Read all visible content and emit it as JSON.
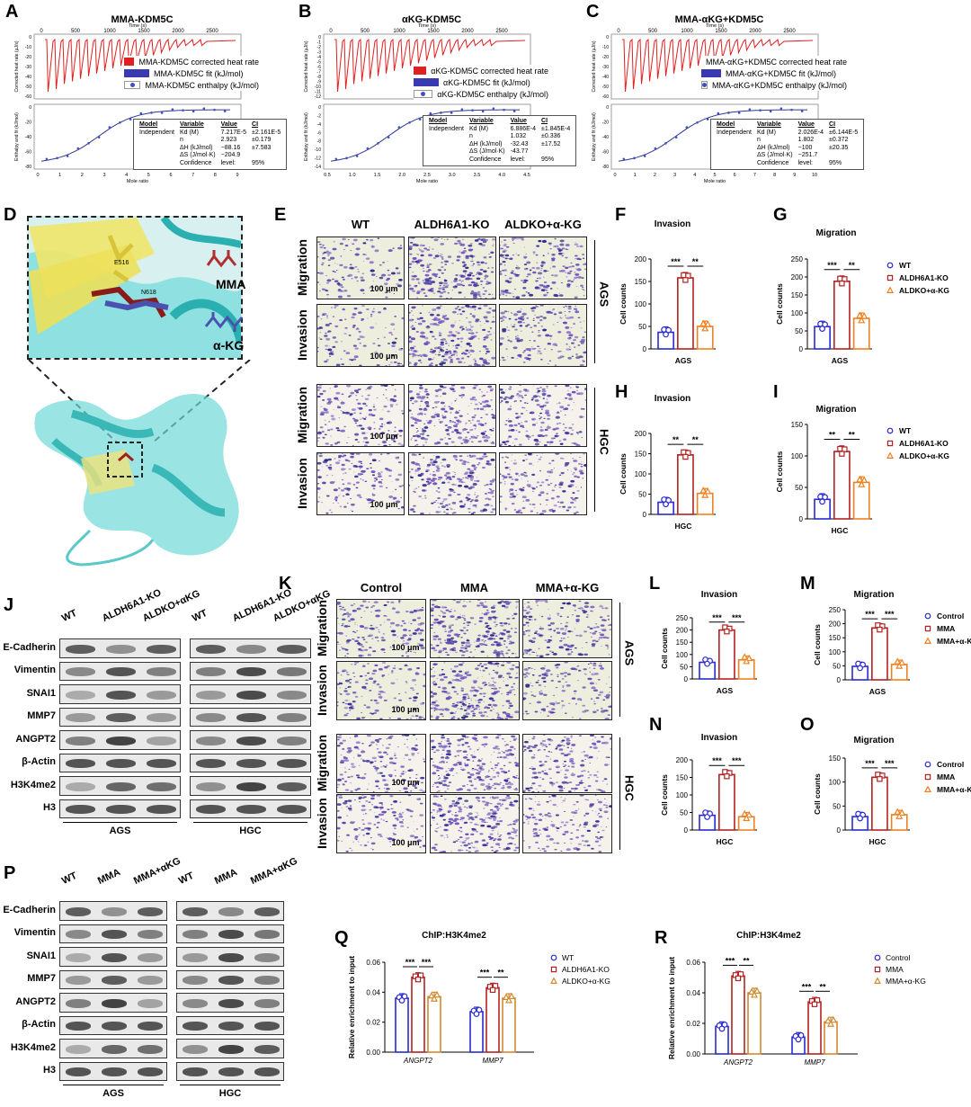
{
  "panel_labels": {
    "A": "A",
    "B": "B",
    "C": "C",
    "D": "D",
    "E": "E",
    "F": "F",
    "G": "G",
    "H": "H",
    "I": "I",
    "J": "J",
    "K": "K",
    "L": "L",
    "M": "M",
    "N": "N",
    "O": "O",
    "P": "P",
    "Q": "Q",
    "R": "R"
  },
  "itc": [
    {
      "title": "MMA-KDM5C",
      "legend": [
        "MMA-KDM5C corrected heat rate",
        "MMA-KDM5C fit  (kJ/mol)",
        "MMA-KDM5C enthalpy  (kJ/mol)"
      ],
      "table": {
        "head": [
          "Model",
          "Variable",
          "Value",
          "CI"
        ],
        "rows": [
          [
            "Independent",
            "Kd (M)",
            "7.217E-5",
            "±2.161E-5"
          ],
          [
            "",
            "n",
            "2.923",
            "±0.179"
          ],
          [
            "",
            "ΔH (kJ/mol)",
            "−88.16",
            "±7.583"
          ],
          [
            "",
            "ΔS (J/mol·K)",
            "−204.9",
            ""
          ],
          [
            "",
            "Confidence",
            "level:",
            "95%"
          ]
        ]
      },
      "time_ticks": [
        "0",
        "500",
        "1000",
        "1500",
        "2000",
        "2500"
      ],
      "time_label": "Time (s)",
      "mole_label": "Mole ratio",
      "mole_ticks": [
        "0",
        "1",
        "2",
        "3",
        "4",
        "5",
        "6",
        "7",
        "8",
        "9"
      ],
      "top_ylabel": "Corrected heat rate (µJ/s)",
      "bot_ylabel": "Enthalpy and fit (kJ/mol)",
      "top_yticks": [
        "0",
        "-10",
        "-20",
        "-30",
        "-40",
        "-50",
        "-60"
      ],
      "bot_yticks": [
        "0",
        "-20",
        "-40",
        "-60",
        "-80"
      ]
    },
    {
      "title": "αKG-KDM5C",
      "legend": [
        "αKG-KDM5C corrected heat rate",
        "αKG-KDM5C fit  (kJ/mol)",
        "αKG-KDM5C enthalpy  (kJ/mol)"
      ],
      "table": {
        "head": [
          "Model",
          "Variable",
          "Value",
          "CI"
        ],
        "rows": [
          [
            "Independent",
            "Kd (M)",
            "6.886E-4",
            "±1.845E-4"
          ],
          [
            "",
            "n",
            "1.032",
            "±0.336"
          ],
          [
            "",
            "ΔH (kJ/mol)",
            "-32.43",
            "±17.52"
          ],
          [
            "",
            "ΔS (J/mol·K)",
            "-43.77",
            ""
          ],
          [
            "",
            "Confidence",
            "level:",
            "95%"
          ]
        ]
      },
      "time_ticks": [
        "0",
        "500",
        "1000",
        "1500",
        "2000",
        "2500"
      ],
      "time_label": "Time (s)",
      "mole_label": "Mole ratio",
      "mole_ticks": [
        "0.5",
        "1.0",
        "1.5",
        "2.0",
        "2.5",
        "3.0",
        "3.5",
        "4.0",
        "4.5"
      ],
      "top_ylabel": "Corrected heat rate (µJ/s)",
      "bot_ylabel": "Enthalpy and fit (kJ/mol)",
      "top_yticks": [
        "0",
        "-1",
        "-2",
        "-3",
        "-4",
        "-5",
        "-6",
        "-7",
        "-8",
        "-9",
        "-10",
        "-11",
        "-12"
      ],
      "bot_yticks": [
        "0",
        "-2",
        "-4",
        "-6",
        "-8",
        "-10",
        "-12",
        "-14"
      ]
    },
    {
      "title": "MMA-αKG+KDM5C",
      "legend": [
        "MMA-αKG+KDM5C corrected heat rate",
        "MMA-αKG+KDM5C fit  (kJ/mol)",
        "MMA-αKG+KDM5C enthalpy  (kJ/mol)"
      ],
      "table": {
        "head": [
          "Model",
          "Variable",
          "Value",
          "CI"
        ],
        "rows": [
          [
            "Independent",
            "Kd (M)",
            "2.026E-4",
            "±6.144E-5"
          ],
          [
            "",
            "n",
            "1.802",
            "±0.372"
          ],
          [
            "",
            "ΔH (kJ/mol)",
            "−100",
            "±20.35"
          ],
          [
            "",
            "ΔS (J/mol·K)",
            "−251.7",
            ""
          ],
          [
            "",
            "Confidence",
            "level:",
            "95%"
          ]
        ]
      },
      "time_ticks": [
        "0",
        "500",
        "1000",
        "1500",
        "2000",
        "2500"
      ],
      "time_label": "Time (s)",
      "mole_label": "Mole ratio",
      "mole_ticks": [
        "0",
        "1",
        "2",
        "3",
        "4",
        "5",
        "6",
        "7",
        "8",
        "9",
        "10"
      ],
      "top_ylabel": "Corrected heat rate (µJ/s)",
      "bot_ylabel": "Enthalpy and fit (kJ/mol)",
      "top_yticks": [
        "0",
        "-10",
        "-20",
        "-30",
        "-40",
        "-50",
        "-60"
      ],
      "bot_yticks": [
        "0",
        "-20",
        "-40",
        "-60",
        "-80"
      ]
    }
  ],
  "docking": {
    "ligand1": "MMA",
    "ligand2": "α-KG",
    "res1": "E516",
    "res2": "N618"
  },
  "transwell_E": {
    "cols": [
      "WT",
      "ALDH6A1-KO",
      "ALDKO+α-KG"
    ],
    "rows": [
      "Migration",
      "Invasion",
      "Migration",
      "Invasion"
    ],
    "cells": [
      "AGS",
      "HGC"
    ],
    "scale": "100 μm"
  },
  "transwell_K": {
    "cols": [
      "Control",
      "MMA",
      "MMA+α-KG"
    ],
    "rows": [
      "Migration",
      "Invasion",
      "Migration",
      "Invasion"
    ],
    "cells": [
      "AGS",
      "HGC"
    ],
    "scale": "100 μm"
  },
  "western_J": {
    "cols": [
      "WT",
      "ALDH6A1-KO",
      "ALDKO+αKG"
    ],
    "groups": [
      "AGS",
      "HGC"
    ],
    "rows": [
      "E-Cadherin",
      "Vimentin",
      "SNAI1",
      "MMP7",
      "ANGPT2",
      "β-Actin",
      "H3K4me2",
      "H3"
    ]
  },
  "western_P": {
    "cols": [
      "WT",
      "MMA",
      "MMA+αKG"
    ],
    "groups": [
      "AGS",
      "HGC"
    ],
    "rows": [
      "E-Cadherin",
      "Vimentin",
      "SNAI1",
      "MMP7",
      "ANGPT2",
      "β-Actin",
      "H3K4me2",
      "H3"
    ]
  },
  "chart_data": [
    {
      "id": "F",
      "type": "bar",
      "title": "Invasion",
      "xlabel": "AGS",
      "ylabel": "Cell counts",
      "ylim": [
        0,
        200
      ],
      "yticks": [
        0,
        50,
        100,
        150,
        200
      ],
      "categories": [
        "WT",
        "ALDH6A1-KO",
        "ALDKO+α-KG"
      ],
      "values": [
        37,
        158,
        50
      ],
      "sig": [
        "***",
        "**"
      ],
      "colors": [
        "#2a2ad0",
        "#b22222",
        "#f08020"
      ]
    },
    {
      "id": "G",
      "type": "bar",
      "title": "Migration",
      "xlabel": "AGS",
      "ylabel": "Cell counts",
      "ylim": [
        0,
        250
      ],
      "yticks": [
        0,
        50,
        100,
        150,
        200,
        250
      ],
      "categories": [
        "WT",
        "ALDH6A1-KO",
        "ALDKO+α-KG"
      ],
      "values": [
        62,
        188,
        85
      ],
      "sig": [
        "***",
        "**"
      ],
      "legend": [
        "WT",
        "ALDH6A1-KO",
        "ALDKO+α-KG"
      ],
      "colors": [
        "#2a2ad0",
        "#b22222",
        "#f08020"
      ]
    },
    {
      "id": "H",
      "type": "bar",
      "title": "Invasion",
      "xlabel": "HGC",
      "ylabel": "Cell counts",
      "ylim": [
        0,
        200
      ],
      "yticks": [
        0,
        50,
        100,
        150,
        200
      ],
      "categories": [
        "WT",
        "ALDH6A1-KO",
        "ALDKO+α-KG"
      ],
      "values": [
        30,
        147,
        52
      ],
      "sig": [
        "**",
        "**"
      ],
      "colors": [
        "#2a2ad0",
        "#b22222",
        "#f08020"
      ]
    },
    {
      "id": "I",
      "type": "bar",
      "title": "Migration",
      "xlabel": "HGC",
      "ylabel": "Cell counts",
      "ylim": [
        0,
        150
      ],
      "yticks": [
        0,
        50,
        100,
        150
      ],
      "categories": [
        "WT",
        "ALDH6A1-KO",
        "ALDKO+α-KG"
      ],
      "values": [
        31,
        107,
        58
      ],
      "sig": [
        "**",
        "**"
      ],
      "legend": [
        "WT",
        "ALDH6A1-KO",
        "ALDKO+α-KG"
      ],
      "colors": [
        "#2a2ad0",
        "#b22222",
        "#f08020"
      ]
    },
    {
      "id": "L",
      "type": "bar",
      "title": "Invasion",
      "xlabel": "AGS",
      "ylabel": "Cell counts",
      "ylim": [
        0,
        250
      ],
      "yticks": [
        0,
        50,
        100,
        150,
        200,
        250
      ],
      "categories": [
        "Control",
        "MMA",
        "MMA+α-KG"
      ],
      "values": [
        68,
        200,
        78
      ],
      "sig": [
        "***",
        "***"
      ],
      "colors": [
        "#2a2ad0",
        "#b22222",
        "#f08020"
      ]
    },
    {
      "id": "M",
      "type": "bar",
      "title": "Migration",
      "xlabel": "AGS",
      "ylabel": "Cell counts",
      "ylim": [
        0,
        250
      ],
      "yticks": [
        0,
        50,
        100,
        150,
        200,
        250
      ],
      "categories": [
        "Control",
        "MMA",
        "MMA+α-KG"
      ],
      "values": [
        48,
        185,
        55
      ],
      "sig": [
        "***",
        "***"
      ],
      "legend": [
        "Control",
        "MMA",
        "MMA+α-KG"
      ],
      "colors": [
        "#2a2ad0",
        "#b22222",
        "#f08020"
      ]
    },
    {
      "id": "N",
      "type": "bar",
      "title": "Invasion",
      "xlabel": "HGC",
      "ylabel": "Cell counts",
      "ylim": [
        0,
        200
      ],
      "yticks": [
        0,
        50,
        100,
        150,
        200
      ],
      "categories": [
        "Control",
        "MMA",
        "MMA+α-KG"
      ],
      "values": [
        42,
        158,
        38
      ],
      "sig": [
        "***",
        "***"
      ],
      "colors": [
        "#2a2ad0",
        "#b22222",
        "#f08020"
      ]
    },
    {
      "id": "O",
      "type": "bar",
      "title": "Migration",
      "xlabel": "HGC",
      "ylabel": "Cell counts",
      "ylim": [
        0,
        150
      ],
      "yticks": [
        0,
        50,
        100,
        150
      ],
      "categories": [
        "Control",
        "MMA",
        "MMA+α-KG"
      ],
      "values": [
        28,
        110,
        32
      ],
      "sig": [
        "***",
        "***"
      ],
      "legend": [
        "Control",
        "MMA",
        "MMA+α-KG"
      ],
      "colors": [
        "#2a2ad0",
        "#b22222",
        "#f08020"
      ]
    },
    {
      "id": "Q",
      "type": "bar",
      "title": "ChIP:H3K4me2",
      "ylabel": "Relative enrichment to input",
      "ylim": [
        0,
        0.06
      ],
      "yticks": [
        0,
        0.02,
        0.04,
        0.06
      ],
      "ytick_labels": [
        "0.00",
        "0.02",
        "0.04",
        "0.06"
      ],
      "groups": [
        "ANGPT2",
        "MMP7"
      ],
      "series": [
        {
          "name": "WT",
          "values": [
            0.036,
            0.027
          ]
        },
        {
          "name": "ALDH6A1-KO",
          "values": [
            0.05,
            0.043
          ]
        },
        {
          "name": "ALDKO+α-KG",
          "values": [
            0.037,
            0.036
          ]
        }
      ],
      "sig": [
        [
          "***",
          "***"
        ],
        [
          "***",
          "**"
        ]
      ],
      "colors": [
        "#2a2ad0",
        "#b22222",
        "#d08a30"
      ]
    },
    {
      "id": "R",
      "type": "bar",
      "title": "ChIP:H3K4me2",
      "ylabel": "Relative enrichment to input",
      "ylim": [
        0,
        0.06
      ],
      "yticks": [
        0,
        0.02,
        0.04,
        0.06
      ],
      "ytick_labels": [
        "0.00",
        "0.02",
        "0.04",
        "0.06"
      ],
      "groups": [
        "ANGPT2",
        "MMP7"
      ],
      "series": [
        {
          "name": "Control",
          "values": [
            0.018,
            0.011
          ]
        },
        {
          "name": "MMA",
          "values": [
            0.051,
            0.034
          ]
        },
        {
          "name": "MMA+α-KG",
          "values": [
            0.04,
            0.021
          ]
        }
      ],
      "sig": [
        [
          "***",
          "**"
        ],
        [
          "***",
          "**"
        ]
      ],
      "colors": [
        "#2a2ad0",
        "#b22222",
        "#d08a30"
      ]
    }
  ]
}
